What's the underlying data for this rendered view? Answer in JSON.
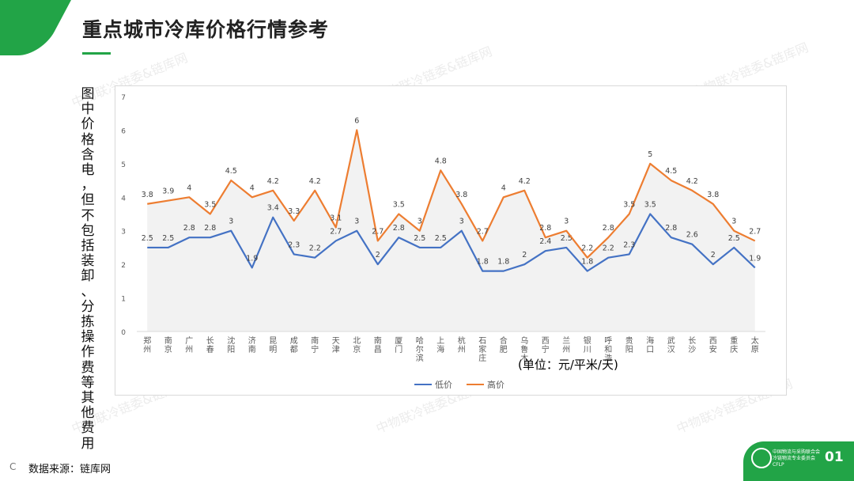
{
  "header": {
    "title": "重点城市冷库价格行情参考"
  },
  "side_note": "图中价格含电，但不包括装卸、分拣操作费等其他费用",
  "unit_note": "(单位：元/平米/天)",
  "source": "数据来源：链库网",
  "source_prefix": "C",
  "page_number": "01",
  "badge": {
    "line1": "中国物流与采购联合会",
    "line2": "冷链物流专业委员会",
    "line3": "CFLP"
  },
  "watermark_text": "中物联冷链委&链库网",
  "colors": {
    "brand_green": "#22a447",
    "low_series": "#4472c4",
    "high_series": "#ed7d31"
  },
  "chart_data": {
    "type": "line",
    "title": "",
    "xlabel": "",
    "ylabel": "",
    "ylim": [
      0,
      7
    ],
    "yticks": [
      0,
      1,
      2,
      3,
      4,
      5,
      6,
      7
    ],
    "grid": false,
    "legend_position": "bottom",
    "categories": [
      "郑州",
      "南京",
      "广州",
      "长春",
      "沈阳",
      "济南",
      "昆明",
      "成都",
      "南宁",
      "天津",
      "北京",
      "南昌",
      "厦门",
      "哈尔滨",
      "上海",
      "杭州",
      "石家庄",
      "合肥",
      "乌鲁木齐",
      "西宁",
      "兰州",
      "银川",
      "呼和浩特",
      "贵阳",
      "海口",
      "武汉",
      "长沙",
      "西安",
      "重庆",
      "太原"
    ],
    "category_labels": [
      "郑州",
      "南京",
      "广州",
      "长春",
      "沈阳",
      "济南",
      "昆明",
      "成都",
      "南宁",
      "天津",
      "北京",
      "南昌",
      "厦门",
      "哈尔滨",
      "上海",
      "杭州",
      "石家庄",
      "合肥",
      "乌鲁木",
      "西宁",
      "兰州",
      "银川",
      "呼和浩",
      "贵阳",
      "海口",
      "武汉",
      "长沙",
      "西安",
      "重庆",
      "太原"
    ],
    "series": [
      {
        "name": "低价",
        "color": "#4472c4",
        "values": [
          2.5,
          2.5,
          2.8,
          2.8,
          3,
          1.9,
          3.4,
          2.3,
          2.2,
          2.7,
          3,
          2,
          2.8,
          2.5,
          2.5,
          3,
          1.8,
          1.8,
          2,
          2.4,
          2.5,
          1.8,
          2.2,
          2.3,
          3.5,
          2.8,
          2.6,
          2,
          2.5,
          1.9
        ]
      },
      {
        "name": "高价",
        "color": "#ed7d31",
        "values": [
          3.8,
          3.9,
          4,
          3.5,
          4.5,
          4,
          4.2,
          3.3,
          4.2,
          3.1,
          6,
          2.7,
          3.5,
          3,
          4.8,
          3.8,
          2.7,
          4,
          4.2,
          2.8,
          3,
          2.2,
          2.8,
          3.5,
          5,
          4.5,
          4.2,
          3.8,
          3,
          2.7
        ]
      }
    ]
  }
}
